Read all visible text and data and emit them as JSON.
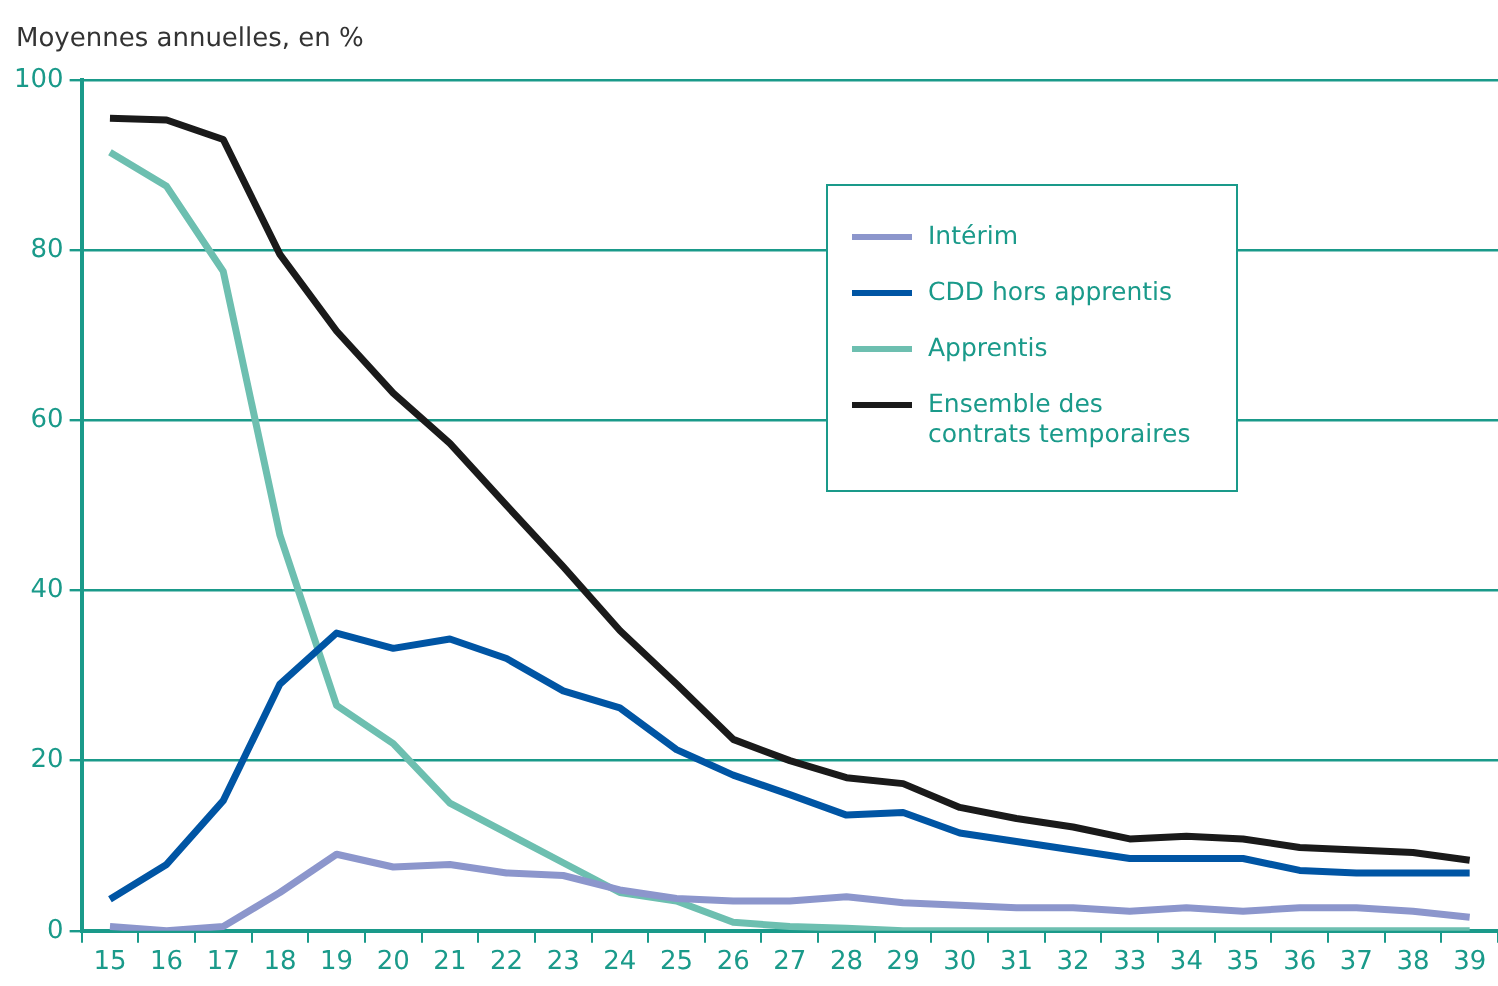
{
  "chart_data": {
    "type": "line",
    "ylabel": "Moyennes annuelles, en %",
    "categories": [
      "15",
      "16",
      "17",
      "18",
      "19",
      "20",
      "21",
      "22",
      "23",
      "24",
      "25",
      "26",
      "27",
      "28",
      "29",
      "30",
      "31",
      "32",
      "33",
      "34",
      "35",
      "36",
      "37",
      "38",
      "39"
    ],
    "ylim": [
      0,
      100
    ],
    "yticks": [
      0,
      20,
      40,
      60,
      80,
      100
    ],
    "grid": "y",
    "legend": "top right",
    "marker": "none",
    "line_style": "solid",
    "series": [
      {
        "name": "Intérim",
        "color": "#8c96cc",
        "values": [
          0.5,
          0,
          0.5,
          4.5,
          9,
          7.5,
          7.8,
          6.8,
          6.5,
          4.8,
          3.8,
          3.5,
          3.5,
          4,
          3.3,
          3,
          2.7,
          2.7,
          2.3,
          2.7,
          2.3,
          2.7,
          2.7,
          2.3,
          1.6
        ]
      },
      {
        "name": "CDD hors apprentis",
        "color": "#0055a4",
        "values": [
          3.7,
          7.8,
          15.3,
          29,
          35,
          33.2,
          34.3,
          32,
          28.2,
          26.2,
          21.3,
          18.3,
          16,
          13.6,
          13.9,
          11.5,
          10.5,
          9.5,
          8.5,
          8.5,
          8.5,
          7.1,
          6.8,
          6.8,
          6.8
        ]
      },
      {
        "name": "Apprentis",
        "color": "#6dbfb0",
        "values": [
          91.5,
          87.5,
          77.5,
          46.5,
          26.5,
          22,
          15,
          11.5,
          8,
          4.5,
          3.5,
          1,
          0.5,
          0.3,
          0,
          0,
          0,
          0,
          0,
          0,
          0,
          0,
          0,
          0,
          0
        ]
      },
      {
        "name": "Ensemble des contrats temporaires",
        "color": "#1a1a1a",
        "values": [
          95.5,
          95.3,
          93,
          79.5,
          70.5,
          63.2,
          57.3,
          50,
          42.8,
          35.3,
          29,
          22.5,
          20,
          18,
          17.3,
          14.5,
          13.2,
          12.2,
          10.8,
          11.1,
          10.8,
          9.8,
          9.5,
          9.2,
          8.3
        ]
      }
    ]
  }
}
